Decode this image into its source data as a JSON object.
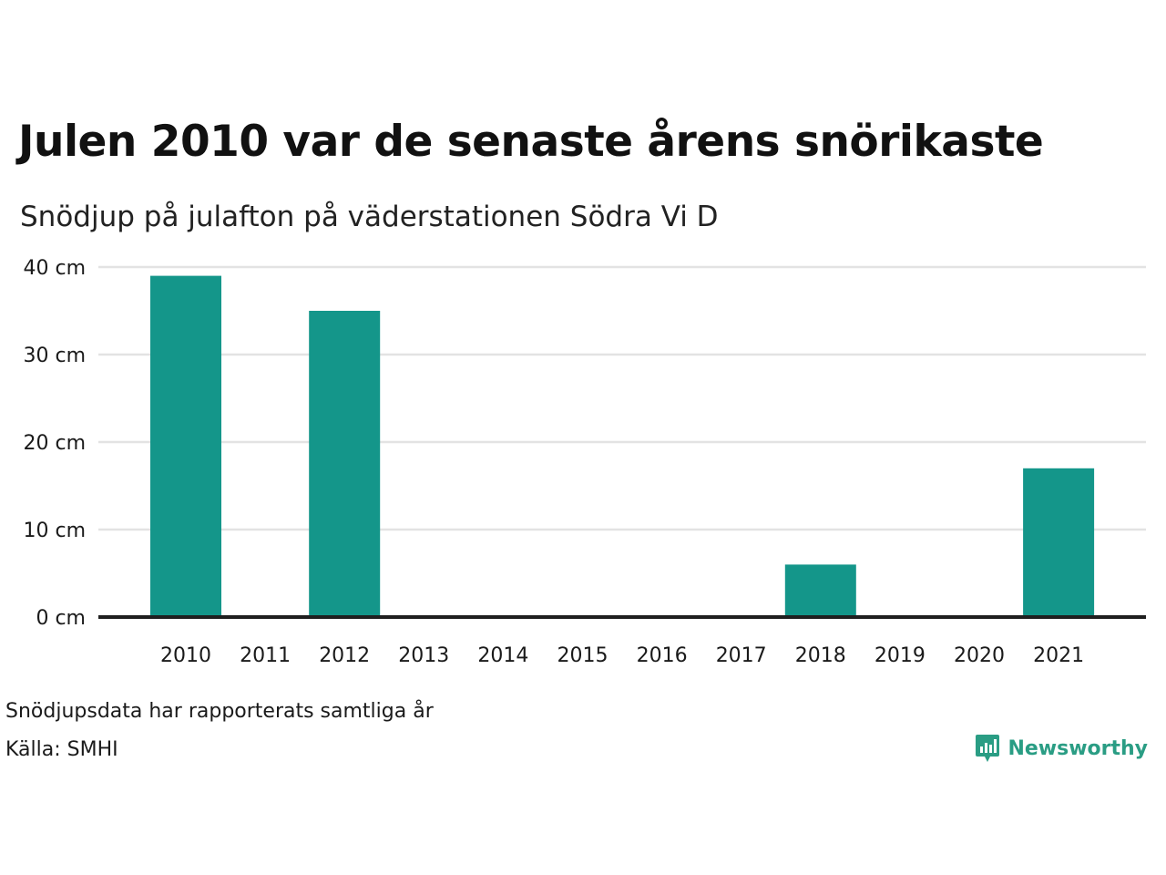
{
  "header": {
    "title": "Julen 2010 var de senaste årens snörikaste",
    "subtitle": "Snödjup på julafton på väderstationen Södra Vi D"
  },
  "footer": {
    "note": "Snödjupsdata har rapporterats samtliga år",
    "source": "Källa: SMHI",
    "brand_name": "Newsworthy",
    "brand_icon": "newsworthy-logo-icon"
  },
  "colors": {
    "bar": "#14968a",
    "grid": "#e3e3e3",
    "baseline": "#1f1f1f",
    "brand": "#2a9d84"
  },
  "chart_data": {
    "type": "bar",
    "title": "Julen 2010 var de senaste årens snörikaste",
    "subtitle": "Snödjup på julafton på väderstationen Södra Vi D",
    "categories": [
      "2010",
      "2011",
      "2012",
      "2013",
      "2014",
      "2015",
      "2016",
      "2017",
      "2018",
      "2019",
      "2020",
      "2021"
    ],
    "values": [
      39,
      0,
      35,
      0,
      0,
      0,
      0,
      0,
      6,
      0,
      0,
      17
    ],
    "y_unit": "cm",
    "ylim": [
      0,
      40
    ],
    "yticks": [
      0,
      10,
      20,
      30,
      40
    ],
    "ytick_labels": [
      "0 cm",
      "10 cm",
      "20 cm",
      "30 cm",
      "40 cm"
    ],
    "grid": true,
    "legend": "none"
  }
}
